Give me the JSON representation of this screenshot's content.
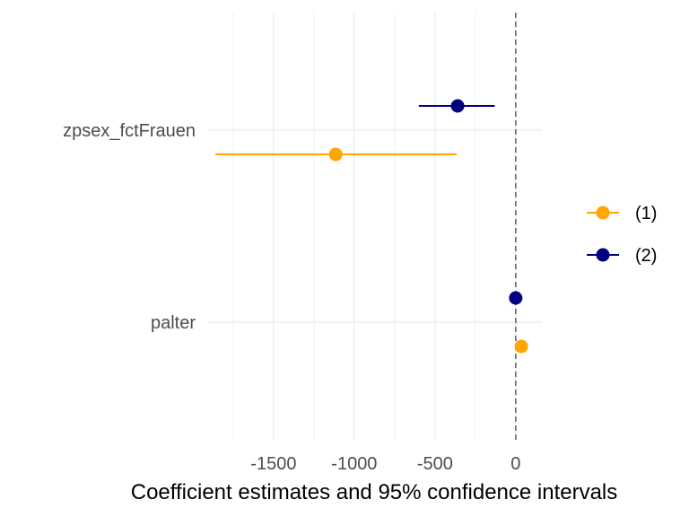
{
  "chart_data": {
    "type": "dot-whisker",
    "title": "",
    "xlabel": "Coefficient estimates and 95% confidence intervals",
    "ylabel": "",
    "xlim": [
      -1905,
      162
    ],
    "x_ticks": [
      -1500,
      -1000,
      -500,
      0
    ],
    "x_tick_labels": [
      "-1500",
      "-1000",
      "-500",
      "0"
    ],
    "x_minor_ticks": [
      -1750,
      -1250,
      -750,
      -250
    ],
    "reference_line": {
      "x": 0,
      "style": "dashed"
    },
    "categories": [
      "zpsex_fctFrauen",
      "palter"
    ],
    "grid": true,
    "legend": {
      "position": "right"
    },
    "series": [
      {
        "name": "(1)",
        "color": "#FFA500",
        "points": [
          {
            "term": "zpsex_fctFrauen",
            "estimate": -1115,
            "conf_low": -1860,
            "conf_high": -365
          },
          {
            "term": "palter",
            "estimate": 35,
            "conf_low": 28,
            "conf_high": 42
          }
        ]
      },
      {
        "name": "(2)",
        "color": "#000080",
        "points": [
          {
            "term": "zpsex_fctFrauen",
            "estimate": -360,
            "conf_low": -600,
            "conf_high": -130
          },
          {
            "term": "palter",
            "estimate": 0,
            "conf_low": -6,
            "conf_high": 6
          }
        ]
      }
    ]
  }
}
